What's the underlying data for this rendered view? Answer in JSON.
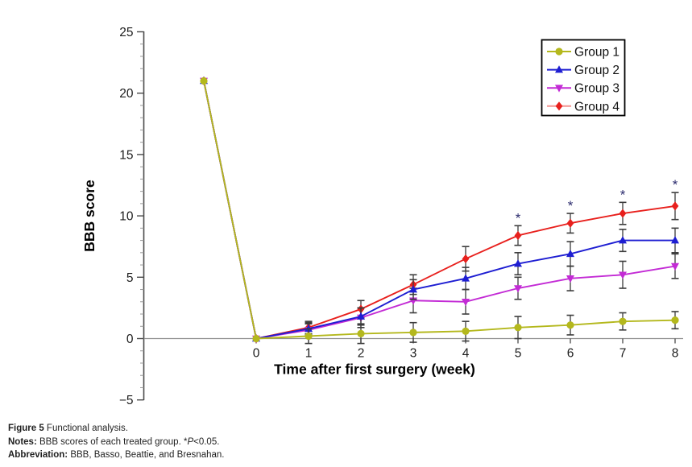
{
  "page": {
    "background": "#ffffff"
  },
  "chart_data": {
    "type": "line",
    "title": "",
    "xlabel": "Time after first surgery (week)",
    "ylabel": "BBB score",
    "x": [
      -1,
      0,
      1,
      2,
      3,
      4,
      5,
      6,
      7,
      8
    ],
    "x_ticks": [
      {
        "v": 0,
        "label": "0"
      },
      {
        "v": 1,
        "label": "1"
      },
      {
        "v": 2,
        "label": "2"
      },
      {
        "v": 3,
        "label": "3"
      },
      {
        "v": 4,
        "label": "4"
      },
      {
        "v": 5,
        "label": "5"
      },
      {
        "v": 6,
        "label": "6"
      },
      {
        "v": 7,
        "label": "7"
      },
      {
        "v": 8,
        "label": "8"
      }
    ],
    "y_ticks": [
      {
        "v": -5,
        "label": "−5"
      },
      {
        "v": 0,
        "label": "0"
      },
      {
        "v": 5,
        "label": "5"
      },
      {
        "v": 10,
        "label": "10"
      },
      {
        "v": 15,
        "label": "15"
      },
      {
        "v": 20,
        "label": "20"
      },
      {
        "v": 25,
        "label": "25"
      }
    ],
    "ylim": [
      -5,
      25
    ],
    "xlim": [
      -2.15,
      8.15
    ],
    "y_minor_step": 1,
    "grid": false,
    "legend_position": "top-right",
    "series": [
      {
        "name": "Group 1",
        "color": "#b4b81d",
        "marker": "circle",
        "values": [
          21,
          0,
          0.2,
          0.4,
          0.5,
          0.6,
          0.9,
          1.1,
          1.4,
          1.5
        ],
        "errors": [
          0,
          0,
          0.6,
          0.8,
          0.8,
          0.8,
          0.9,
          0.8,
          0.7,
          0.7
        ]
      },
      {
        "name": "Group 2",
        "color": "#1e1ed2",
        "marker": "triangle-up",
        "values": [
          21,
          0,
          0.8,
          1.8,
          4.0,
          4.9,
          6.1,
          6.9,
          8.0,
          8.0
        ],
        "errors": [
          0,
          0,
          0.5,
          0.7,
          0.8,
          0.9,
          0.9,
          1.0,
          0.9,
          1.0
        ]
      },
      {
        "name": "Group 3",
        "color": "#c32bd5",
        "marker": "triangle-down",
        "values": [
          21,
          0,
          0.7,
          1.7,
          3.1,
          3.0,
          4.1,
          4.9,
          5.2,
          5.9
        ],
        "errors": [
          0,
          0,
          0.5,
          0.8,
          1.0,
          1.0,
          0.9,
          1.0,
          1.1,
          1.0
        ]
      },
      {
        "name": "Group 4",
        "color": "#e8201d",
        "legend_line_color": "#f4938f",
        "marker": "diamond",
        "values": [
          21,
          0,
          0.9,
          2.4,
          4.4,
          6.5,
          8.4,
          9.4,
          10.2,
          10.8
        ],
        "errors": [
          0,
          0,
          0.5,
          0.7,
          0.8,
          1.0,
          0.8,
          0.8,
          0.9,
          1.1
        ]
      }
    ],
    "annotations": [
      {
        "text": "*",
        "week": 5,
        "series": "Group 4"
      },
      {
        "text": "*",
        "week": 6,
        "series": "Group 4"
      },
      {
        "text": "*",
        "week": 7,
        "series": "Group 4"
      },
      {
        "text": "*",
        "week": 8,
        "series": "Group 4"
      }
    ],
    "error_bar_color": "#3c3c3c",
    "annotation_color": "#2c2c6e",
    "axis_color": "#4a4a4a",
    "x_axis_line_color": "#8f8f8f",
    "minor_tick_color": "#9a9a9a",
    "tick_label_color": "#1c1c1c"
  },
  "caption": {
    "figure_label": "Figure 5",
    "figure_text": " Functional analysis.",
    "notes_label": "Notes:",
    "notes_text_1": " BBB scores of each treated group. *",
    "notes_italic": "P",
    "notes_text_2": "<0.05.",
    "abbrev_label": "Abbreviation:",
    "abbrev_text": " BBB, Basso, Beattie, and Bresnahan."
  }
}
